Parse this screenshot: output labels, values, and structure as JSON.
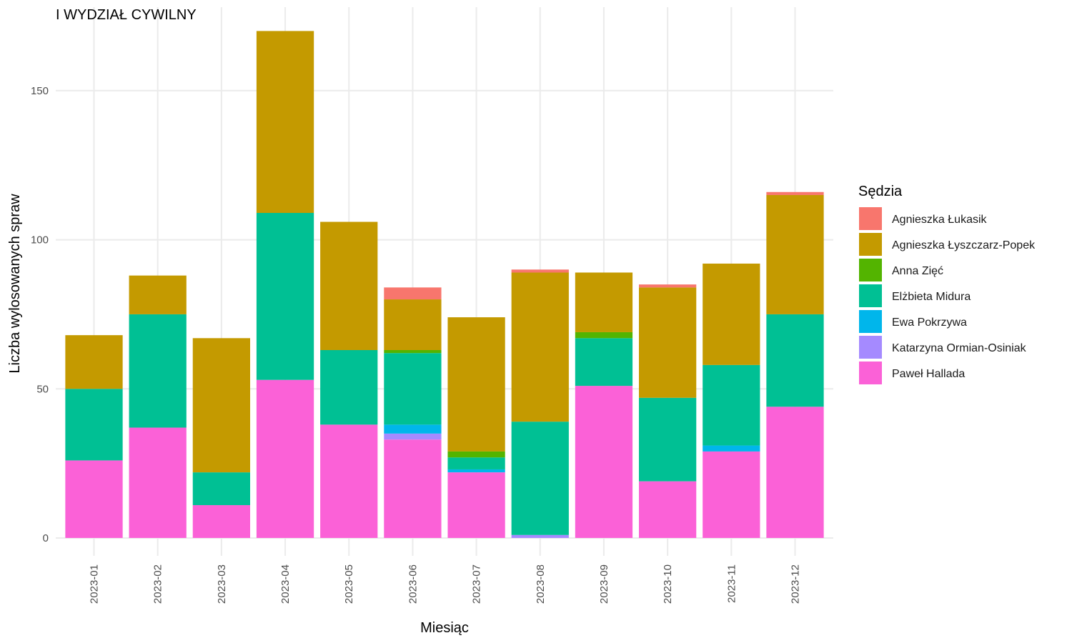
{
  "chart_data": {
    "type": "bar",
    "stacked": true,
    "title": "I WYDZIAŁ CYWILNY",
    "xlabel": "Miesiąc",
    "ylabel": "Liczba wylosowanych spraw",
    "ylim": [
      -6,
      178
    ],
    "yticks": [
      0,
      50,
      100,
      150
    ],
    "grid": true,
    "legend_position": "right",
    "legend_title": "Sędzia",
    "categories": [
      "2023-01",
      "2023-02",
      "2023-03",
      "2023-04",
      "2023-05",
      "2023-06",
      "2023-07",
      "2023-08",
      "2023-09",
      "2023-10",
      "2023-11",
      "2023-12"
    ],
    "series": [
      {
        "name": "Paweł Hallada",
        "color": "#FB61D7",
        "values": [
          26,
          37,
          11,
          53,
          38,
          33,
          22,
          0,
          51,
          19,
          29,
          44
        ]
      },
      {
        "name": "Katarzyna Ormian-Osiniak",
        "color": "#A58AFF",
        "values": [
          0,
          0,
          0,
          0,
          0,
          2,
          0,
          1,
          0,
          0,
          0,
          0
        ]
      },
      {
        "name": "Ewa Pokrzywa",
        "color": "#00B6EB",
        "values": [
          0,
          0,
          0,
          0,
          0,
          3,
          1,
          0,
          0,
          0,
          2,
          0
        ]
      },
      {
        "name": "Elżbieta Midura",
        "color": "#00C094",
        "values": [
          24,
          38,
          11,
          56,
          25,
          24,
          4,
          38,
          16,
          28,
          27,
          31
        ]
      },
      {
        "name": "Anna Zięć",
        "color": "#53B400",
        "values": [
          0,
          0,
          0,
          0,
          0,
          1,
          2,
          0,
          2,
          0,
          0,
          0
        ]
      },
      {
        "name": "Agnieszka Łyszczarz-Popek",
        "color": "#C49A00",
        "values": [
          18,
          13,
          45,
          61,
          43,
          17,
          45,
          50,
          20,
          37,
          34,
          40
        ]
      },
      {
        "name": "Agnieszka Łukasik",
        "color": "#F8766D",
        "values": [
          0,
          0,
          0,
          0,
          0,
          4,
          0,
          1,
          0,
          1,
          0,
          1
        ]
      }
    ],
    "legend_order": [
      "Agnieszka Łukasik",
      "Agnieszka Łyszczarz-Popek",
      "Anna Zięć",
      "Elżbieta Midura",
      "Ewa Pokrzywa",
      "Katarzyna Ormian-Osiniak",
      "Paweł Hallada"
    ]
  }
}
